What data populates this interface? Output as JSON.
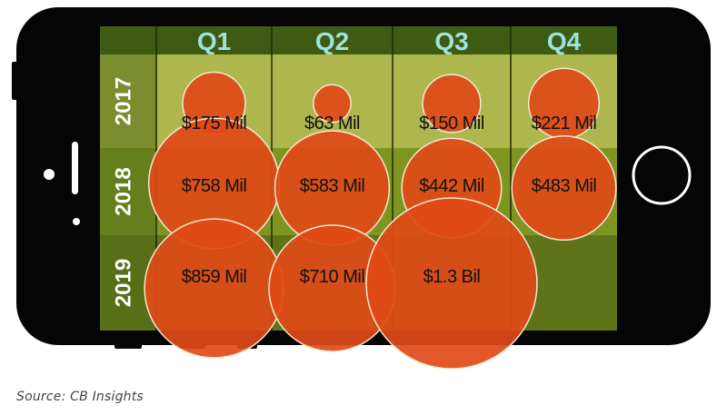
{
  "source_note": "Source: CB Insights",
  "colors": {
    "phone_body": "#050505",
    "header_bg": "#3f5a12",
    "header_text": "#9be4de",
    "row_2017_bg": "#aeb64e",
    "row_2018_bg": "#7f9522",
    "row_2019_bg": "#5f7418",
    "row_label_bg": "#546c17",
    "bubble_fill": "#e04a18",
    "bubble_stroke": "#f3ead0",
    "label_text": "#111111"
  },
  "chart_data": {
    "type": "bubble-grid",
    "title": "",
    "columns": [
      "Q1",
      "Q2",
      "Q3",
      "Q4"
    ],
    "rows": [
      "2017",
      "2018",
      "2019"
    ],
    "unit": "USD millions",
    "cells": [
      {
        "row": "2017",
        "col": "Q1",
        "value": 175,
        "label": "$175 Mil"
      },
      {
        "row": "2017",
        "col": "Q2",
        "value": 63,
        "label": "$63 Mil"
      },
      {
        "row": "2017",
        "col": "Q3",
        "value": 150,
        "label": "$150 Mil"
      },
      {
        "row": "2017",
        "col": "Q4",
        "value": 221,
        "label": "$221 Mil"
      },
      {
        "row": "2018",
        "col": "Q1",
        "value": 758,
        "label": "$758 Mil"
      },
      {
        "row": "2018",
        "col": "Q2",
        "value": 583,
        "label": "$583 Mil"
      },
      {
        "row": "2018",
        "col": "Q3",
        "value": 442,
        "label": "$442 Mil"
      },
      {
        "row": "2018",
        "col": "Q4",
        "value": 483,
        "label": "$483 Mil"
      },
      {
        "row": "2019",
        "col": "Q1",
        "value": 859,
        "label": "$859 Mil"
      },
      {
        "row": "2019",
        "col": "Q2",
        "value": 710,
        "label": "$710 Mil"
      },
      {
        "row": "2019",
        "col": "Q3",
        "value": 1300,
        "label": "$1.3 Bil"
      }
    ]
  }
}
